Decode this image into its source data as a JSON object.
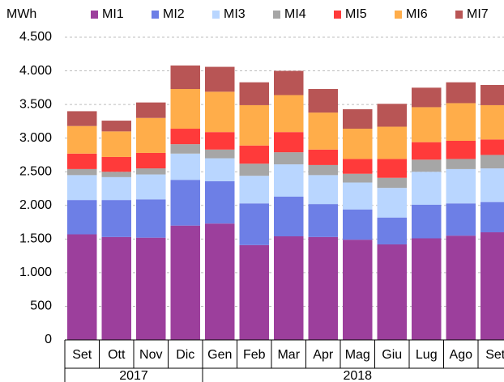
{
  "chart_data": {
    "type": "stacked_bar",
    "y_label": "MWh",
    "categories": [
      "Set",
      "Ott",
      "Nov",
      "Dic",
      "Gen",
      "Feb",
      "Mar",
      "Apr",
      "Mag",
      "Giu",
      "Lug",
      "Ago",
      "Set"
    ],
    "year_labels": [
      "2017",
      "2018"
    ],
    "series": [
      {
        "name": "MI1",
        "color": "#9c3f9c",
        "values": [
          1570,
          1530,
          1520,
          1700,
          1730,
          1410,
          1540,
          1530,
          1490,
          1420,
          1510,
          1550,
          1600
        ]
      },
      {
        "name": "MI2",
        "color": "#6d7fe6",
        "values": [
          510,
          550,
          570,
          680,
          630,
          620,
          590,
          490,
          450,
          400,
          500,
          480,
          450
        ]
      },
      {
        "name": "MI3",
        "color": "#b9d6ff",
        "values": [
          370,
          340,
          370,
          390,
          340,
          410,
          480,
          430,
          400,
          440,
          490,
          510,
          500
        ]
      },
      {
        "name": "MI4",
        "color": "#a6a6a6",
        "values": [
          90,
          80,
          90,
          140,
          130,
          180,
          180,
          150,
          130,
          150,
          180,
          150,
          200
        ]
      },
      {
        "name": "MI5",
        "color": "#ff3a3a",
        "values": [
          230,
          220,
          230,
          230,
          260,
          270,
          300,
          230,
          220,
          280,
          260,
          270,
          230
        ]
      },
      {
        "name": "MI6",
        "color": "#ffad4a",
        "values": [
          410,
          380,
          520,
          590,
          600,
          600,
          550,
          550,
          450,
          480,
          520,
          560,
          510
        ]
      },
      {
        "name": "MI7",
        "color": "#b85555",
        "values": [
          220,
          160,
          230,
          350,
          370,
          340,
          360,
          350,
          290,
          340,
          290,
          310,
          300
        ]
      }
    ],
    "ylim": [
      0,
      4500
    ],
    "yticks": [
      0,
      {
        "value": 500,
        "label": "500"
      },
      {
        "value": 1000,
        "label": "1.000"
      },
      {
        "value": 1500,
        "label": "1.500"
      },
      {
        "value": 2000,
        "label": "2.000"
      },
      {
        "value": 2500,
        "label": "2.500"
      },
      {
        "value": 3000,
        "label": "3.000"
      },
      {
        "value": 3500,
        "label": "3.500"
      },
      {
        "value": 4000,
        "label": "4.000"
      },
      {
        "value": 4500,
        "label": "4.500"
      }
    ],
    "grid": true
  }
}
